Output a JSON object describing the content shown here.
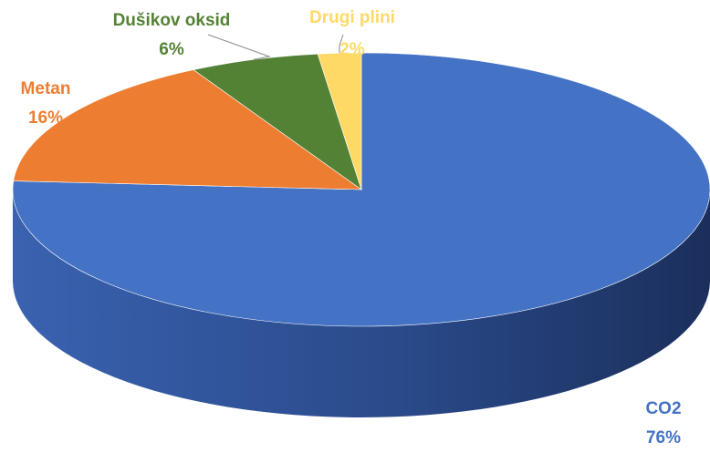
{
  "chart_data": {
    "type": "pie",
    "style": "3d",
    "slices": [
      {
        "label": "CO2",
        "value": 76,
        "value_label": "76%",
        "color": "#4472C4"
      },
      {
        "label": "Metan",
        "value": 16,
        "value_label": "16%",
        "color": "#ED7D31"
      },
      {
        "label": "Dušikov oksid",
        "value": 6,
        "value_label": "6%",
        "color": "#548235"
      },
      {
        "label": "Drugi plini",
        "value": 2,
        "value_label": "2%",
        "color": "#FFD966"
      }
    ]
  }
}
